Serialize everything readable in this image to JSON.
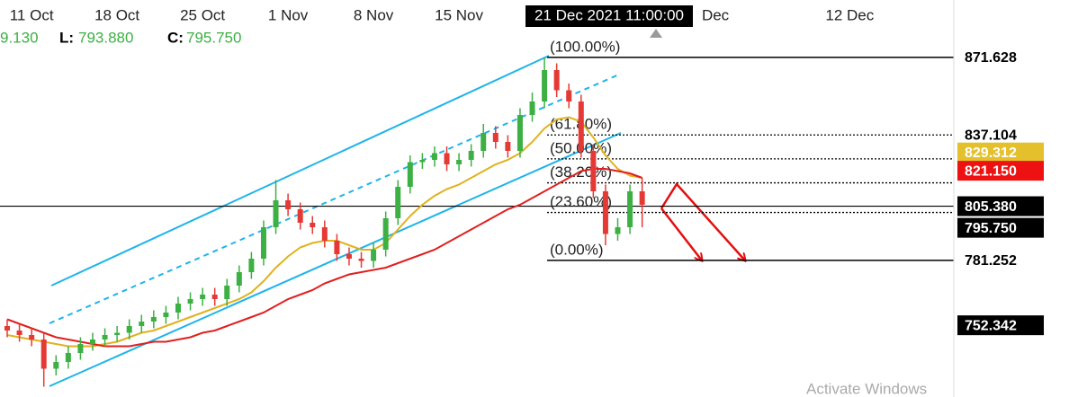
{
  "chart_data": {
    "type": "candlestick",
    "header": {
      "items": [
        {
          "label": null,
          "value": "9.130"
        },
        {
          "label": "L:",
          "value": "793.880"
        },
        {
          "label": "C:",
          "value": "795.750"
        }
      ]
    },
    "crosshair_label": "21 Dec 2021 11:00:00",
    "watermark": "Activate Windows",
    "categories": [
      null,
      null,
      "11 Oct",
      null,
      null,
      null,
      null,
      null,
      null,
      "18 Oct",
      null,
      null,
      null,
      null,
      null,
      null,
      "25 Oct",
      null,
      null,
      null,
      null,
      null,
      null,
      "1 Nov",
      null,
      null,
      null,
      null,
      null,
      null,
      "8 Nov",
      null,
      null,
      null,
      null,
      null,
      null,
      "15 Nov",
      null,
      null,
      null,
      null,
      null,
      null,
      null,
      null,
      null,
      null,
      null,
      null,
      null,
      null,
      null,
      null,
      null,
      null,
      null,
      null,
      "Dec",
      null,
      null,
      null,
      null,
      null,
      null,
      null,
      null,
      null,
      null,
      "12 Dec",
      null
    ],
    "ohlc": {
      "up_color": "#3cb043",
      "down_color": "#e53935",
      "open": [
        752,
        750,
        748,
        746,
        733,
        736,
        740,
        744,
        746,
        748,
        749,
        752,
        754,
        756,
        758,
        762,
        764,
        766,
        764,
        770,
        776,
        782,
        796,
        808,
        804,
        798,
        796,
        790,
        784,
        782,
        781,
        786,
        800,
        814,
        825,
        826,
        829,
        824,
        826,
        830,
        838,
        834,
        830,
        846,
        852,
        866,
        857,
        852,
        830,
        812,
        793,
        796,
        812,
        null,
        null,
        null,
        null,
        null,
        null,
        null,
        null,
        null,
        null,
        null,
        null,
        null,
        null,
        null,
        null,
        null,
        null
      ],
      "high": [
        755,
        753,
        751,
        749,
        739,
        743,
        747,
        749,
        751,
        752,
        755,
        757,
        759,
        761,
        765,
        767,
        769,
        769,
        773,
        779,
        785,
        799,
        817,
        811,
        807,
        801,
        799,
        793,
        787,
        785,
        789,
        803,
        817,
        828,
        829,
        832,
        832,
        829,
        833,
        842,
        841,
        837,
        849,
        856,
        871.628,
        869,
        860,
        855,
        833,
        815,
        800,
        815,
        818,
        null,
        null,
        null,
        null,
        null,
        null,
        null,
        null,
        null,
        null,
        null,
        null,
        null,
        null,
        null,
        null,
        null,
        null
      ],
      "low": [
        747,
        745,
        743,
        725,
        730,
        733,
        737,
        741,
        743,
        745,
        746,
        749,
        751,
        753,
        755,
        759,
        761,
        761,
        761,
        767,
        773,
        779,
        793,
        801,
        795,
        793,
        787,
        781,
        779,
        778,
        778,
        783,
        797,
        811,
        822,
        823,
        821,
        821,
        823,
        827,
        831,
        827,
        827,
        843,
        849,
        854,
        849,
        827,
        809,
        788,
        790,
        793,
        796,
        null,
        null,
        null,
        null,
        null,
        null,
        null,
        null,
        null,
        null,
        null,
        null,
        null,
        null,
        null,
        null,
        null,
        null
      ],
      "close": [
        750,
        748,
        746,
        733,
        736,
        740,
        744,
        746,
        748,
        749,
        752,
        754,
        756,
        758,
        762,
        764,
        766,
        764,
        770,
        776,
        782,
        796,
        808,
        804,
        798,
        796,
        790,
        784,
        782,
        781,
        786,
        800,
        814,
        825,
        826,
        829,
        824,
        826,
        830,
        838,
        834,
        830,
        846,
        852,
        866,
        857,
        852,
        830,
        812,
        793,
        796,
        812,
        806,
        null,
        null,
        null,
        null,
        null,
        null,
        null,
        null,
        null,
        null,
        null,
        null,
        null,
        null,
        null,
        null,
        null,
        null
      ]
    },
    "series": [
      {
        "name": null,
        "color": "#e0b21e",
        "values": [
          748,
          747,
          746,
          745,
          744,
          743,
          743,
          743,
          744,
          745,
          747,
          749,
          750,
          752,
          754,
          756,
          758,
          760,
          762,
          764,
          767,
          772,
          778,
          783,
          787,
          789,
          790,
          790,
          788,
          786,
          786,
          789,
          795,
          801,
          806,
          810,
          813,
          815,
          818,
          821,
          824,
          826,
          829,
          834,
          840,
          844,
          845,
          843,
          836,
          828,
          822,
          819,
          818,
          null,
          null,
          null,
          null,
          null,
          null,
          null,
          null,
          null,
          null,
          null,
          null,
          null,
          null,
          null,
          null,
          null,
          null
        ]
      },
      {
        "name": null,
        "color": "#e02020",
        "values": [
          755,
          753,
          751,
          749,
          747,
          746,
          745,
          744,
          743,
          743,
          743,
          744,
          745,
          745,
          746,
          747,
          749,
          750,
          752,
          754,
          756,
          758,
          761,
          764,
          766,
          768,
          771,
          773,
          775,
          776,
          777,
          778,
          780,
          782,
          784,
          786,
          789,
          792,
          795,
          798,
          801,
          804,
          806,
          809,
          812,
          815,
          818,
          821,
          822,
          822,
          821,
          820,
          818,
          null,
          null,
          null,
          null,
          null,
          null,
          null,
          null,
          null,
          null,
          null,
          null,
          null,
          null,
          null,
          null,
          null,
          null
        ]
      }
    ],
    "fib_levels": [
      {
        "label": "(100.00%)",
        "value": 871.628,
        "dashed": false
      },
      {
        "label": "(61.80%)",
        "value": 837.104,
        "dashed": true
      },
      {
        "label": "(50.00%)",
        "value": 826.44,
        "dashed": true
      },
      {
        "label": "(38.20%)",
        "value": 815.776,
        "dashed": true
      },
      {
        "label": "(23.60%)",
        "value": 802.58,
        "dashed": true
      },
      {
        "label": "(0.00%)",
        "value": 781.252,
        "dashed": false
      }
    ],
    "hline": 805.38,
    "price_tags": [
      {
        "value": 871.628,
        "label": "871.628",
        "bg": "#ffffff",
        "fg": "#000000"
      },
      {
        "value": 837.104,
        "label": "837.104",
        "bg": "#ffffff",
        "fg": "#000000"
      },
      {
        "value": 829.312,
        "label": "829.312",
        "bg": "#e3c02c",
        "fg": "#ffffff"
      },
      {
        "value": 821.15,
        "label": "821.150",
        "bg": "#ee1111",
        "fg": "#ffffff"
      },
      {
        "value": 805.38,
        "label": "805.380",
        "bg": "#000000",
        "fg": "#ffffff"
      },
      {
        "value": 795.75,
        "label": "795.750",
        "bg": "#000000",
        "fg": "#ffffff"
      },
      {
        "value": 781.252,
        "label": "781.252",
        "bg": "#ffffff",
        "fg": "#000000"
      },
      {
        "value": 752.342,
        "label": "752.342",
        "bg": "#000000",
        "fg": "#ffffff"
      }
    ],
    "ylim": [
      720.4,
      897.2
    ]
  }
}
